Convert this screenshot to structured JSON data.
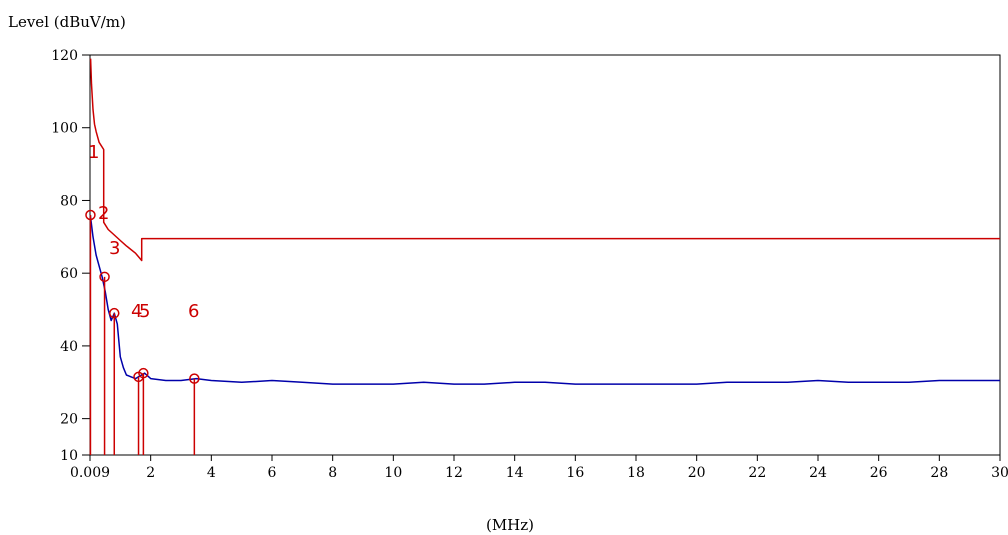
{
  "chart_data": {
    "type": "line",
    "title": "",
    "ylabel": "Level (dBuV/m)",
    "xlabel": "(MHz)",
    "ylim": [
      10,
      120
    ],
    "y_ticks": [
      120,
      100,
      80,
      60,
      40,
      20,
      10
    ],
    "y_tick_labels": [
      "120",
      "100",
      "80",
      "60",
      "40",
      "20",
      "10"
    ],
    "xlim": [
      0,
      30
    ],
    "x_ticks": [
      0,
      2,
      4,
      6,
      8,
      10,
      12,
      14,
      16,
      18,
      20,
      22,
      24,
      26,
      28,
      30
    ],
    "x_tick_labels": [
      "0.009",
      "2",
      "4",
      "6",
      "8",
      "10",
      "12",
      "14",
      "16",
      "18",
      "20",
      "22",
      "24",
      "26",
      "28",
      "30"
    ],
    "grid": false,
    "colors": {
      "limit": "#cc0000",
      "measurement": "#0000aa",
      "marker": "#cc0000"
    },
    "series": [
      {
        "role": "limit",
        "x": [
          0.02,
          0.05,
          0.1,
          0.15,
          0.2,
          0.3,
          0.45,
          0.45,
          0.6,
          0.8,
          1.0,
          1.2,
          1.5,
          1.705,
          1.705,
          30
        ],
        "y": [
          119,
          112,
          105,
          101,
          99,
          96,
          94,
          74,
          72,
          70.5,
          69,
          67.5,
          65.5,
          63.5,
          69.5,
          69.5
        ]
      },
      {
        "role": "measurement",
        "x": [
          0.01,
          0.1,
          0.2,
          0.3,
          0.4,
          0.5,
          0.6,
          0.7,
          0.8,
          0.9,
          1.0,
          1.1,
          1.2,
          1.35,
          1.5,
          1.6,
          1.8,
          2.0,
          2.5,
          3.0,
          3.5,
          4.0,
          5.0,
          6.0,
          7.0,
          8.0,
          9.0,
          10.0,
          11.0,
          12.0,
          13.0,
          14.0,
          15.0,
          16.0,
          17.0,
          18.0,
          19.0,
          20.0,
          21.0,
          22.0,
          23.0,
          24.0,
          25.0,
          26.0,
          27.0,
          28.0,
          29.0,
          30.0
        ],
        "y": [
          76,
          70,
          65,
          62,
          59,
          55,
          50,
          47,
          49,
          46,
          37,
          34,
          32,
          31.5,
          31,
          31.5,
          32.5,
          31,
          30.5,
          30.5,
          31,
          30.5,
          30,
          30.5,
          30,
          29.5,
          29.5,
          29.5,
          30,
          29.5,
          29.5,
          30,
          30,
          29.5,
          29.5,
          29.5,
          29.5,
          29.5,
          30,
          30,
          30,
          30.5,
          30,
          30,
          30,
          30.5,
          30.5,
          30.5
        ]
      }
    ],
    "markers": [
      {
        "label": "1",
        "x": 0.015,
        "y": 76
      },
      {
        "label": "2",
        "x": 0.48,
        "y": 59
      },
      {
        "label": "3",
        "x": 0.8,
        "y": 49
      },
      {
        "label": "4",
        "x": 1.6,
        "y": 31.5
      },
      {
        "label": "5",
        "x": 1.76,
        "y": 32.5
      },
      {
        "label": "6",
        "x": 3.44,
        "y": 31
      }
    ],
    "marker_labels": [
      "1",
      "2",
      "3",
      "4",
      "5",
      "6"
    ]
  }
}
